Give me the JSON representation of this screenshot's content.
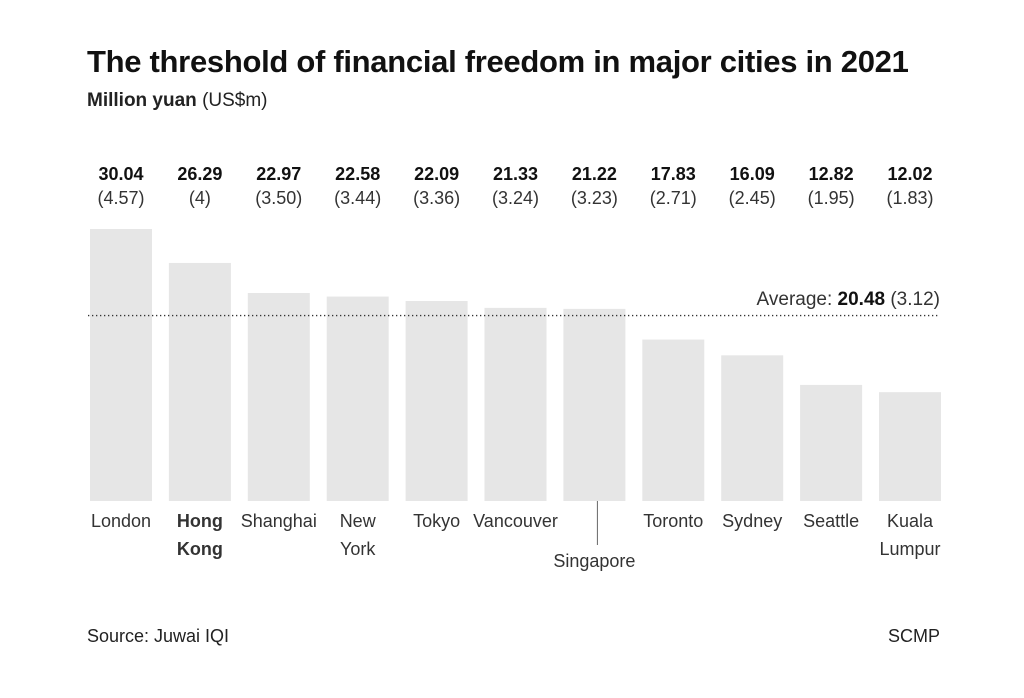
{
  "chart_data": {
    "type": "bar",
    "title": "The threshold of financial freedom in major cities in 2021",
    "subtitle_bold": "Million yuan",
    "subtitle_rest": "(US$m)",
    "categories": [
      "London",
      "Hong Kong",
      "Shanghai",
      "New York",
      "Tokyo",
      "Vancouver",
      "Singapore",
      "Toronto",
      "Sydney",
      "Seattle",
      "Kuala Lumpur"
    ],
    "category_lines": [
      [
        "London"
      ],
      [
        "Hong",
        "Kong"
      ],
      [
        "Shanghai"
      ],
      [
        "New",
        "York"
      ],
      [
        "Tokyo"
      ],
      [
        "Vancouver"
      ],
      [
        "Singapore"
      ],
      [
        "Toronto"
      ],
      [
        "Sydney"
      ],
      [
        "Seattle"
      ],
      [
        "Kuala",
        "Lumpur"
      ]
    ],
    "highlighted_category": "Hong Kong",
    "values": [
      30.04,
      26.29,
      22.97,
      22.58,
      22.09,
      21.33,
      21.22,
      17.83,
      16.09,
      12.82,
      12.02
    ],
    "usd_labels": [
      "(4.57)",
      "(4)",
      "(3.50)",
      "(3.44)",
      "(3.36)",
      "(3.24)",
      "(3.23)",
      "(2.71)",
      "(2.45)",
      "(1.95)",
      "(1.83)"
    ],
    "value_labels": [
      "30.04",
      "26.29",
      "22.97",
      "22.58",
      "22.09",
      "21.33",
      "21.22",
      "17.83",
      "16.09",
      "12.82",
      "12.02"
    ],
    "average": {
      "label": "Average:",
      "value": 20.48,
      "value_label": "20.48",
      "usd_label": "(3.12)"
    },
    "ylim": [
      0,
      30.04
    ],
    "grid": false,
    "bar_color": "#e6e6e6",
    "source": "Source: Juwai IQI",
    "credit": "SCMP"
  }
}
